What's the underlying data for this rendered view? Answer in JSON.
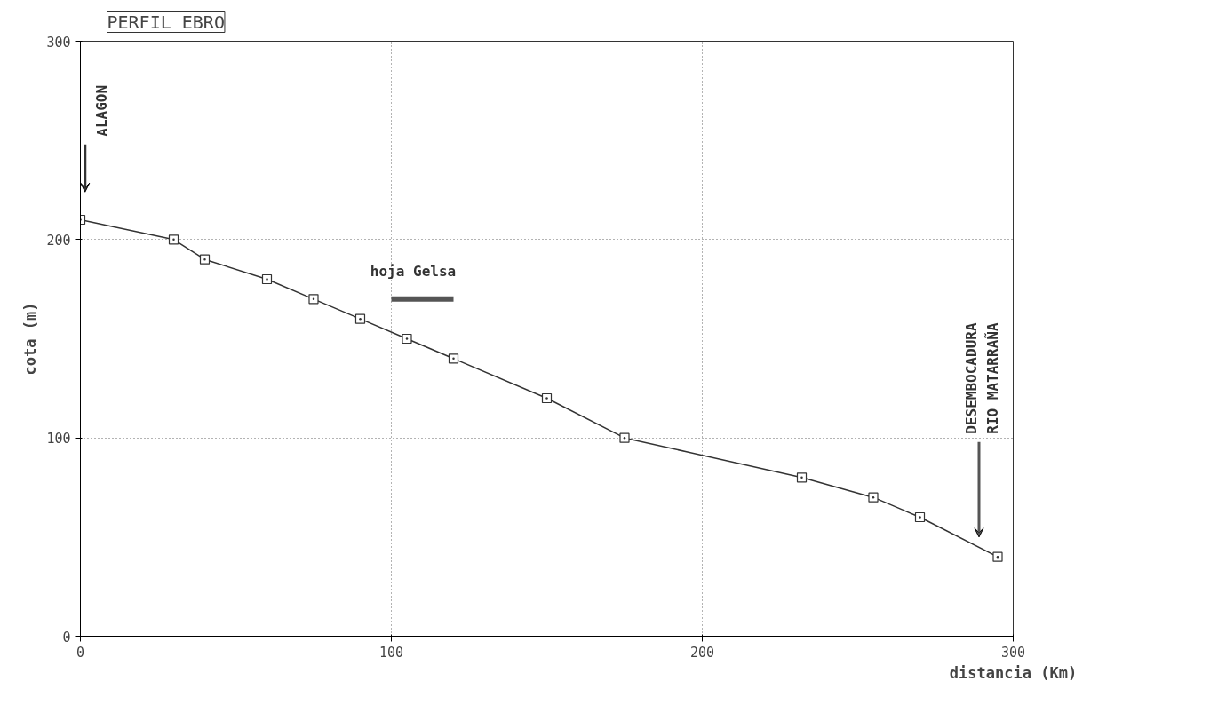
{
  "chart_data": {
    "type": "line",
    "title": "PERFIL EBRO",
    "xlabel": "distancia (Km)",
    "ylabel": "cota (m)",
    "x": [
      0,
      30,
      40,
      60,
      75,
      90,
      105,
      120,
      150,
      175,
      232,
      255,
      270,
      295
    ],
    "series": [
      {
        "color": "#333333",
        "values": [
          210,
          200,
          190,
          180,
          170,
          160,
          150,
          140,
          120,
          100,
          80,
          70,
          60,
          40
        ]
      },
      {
        "color": "#555555",
        "x": [
          100,
          120
        ],
        "values": [
          170,
          170
        ],
        "marker": "none"
      }
    ],
    "marker": "square",
    "line_style": "solid",
    "xlim": [
      0,
      300
    ],
    "ylim": [
      0,
      300
    ],
    "xticks": [
      0,
      100,
      200,
      300
    ],
    "yticks": [
      0,
      100,
      200,
      300
    ],
    "grid": true,
    "annotations": [
      "ALAGON",
      "hoja Gelsa",
      "DESEMBOCADURA\nRIO MATARRAÑA"
    ]
  }
}
